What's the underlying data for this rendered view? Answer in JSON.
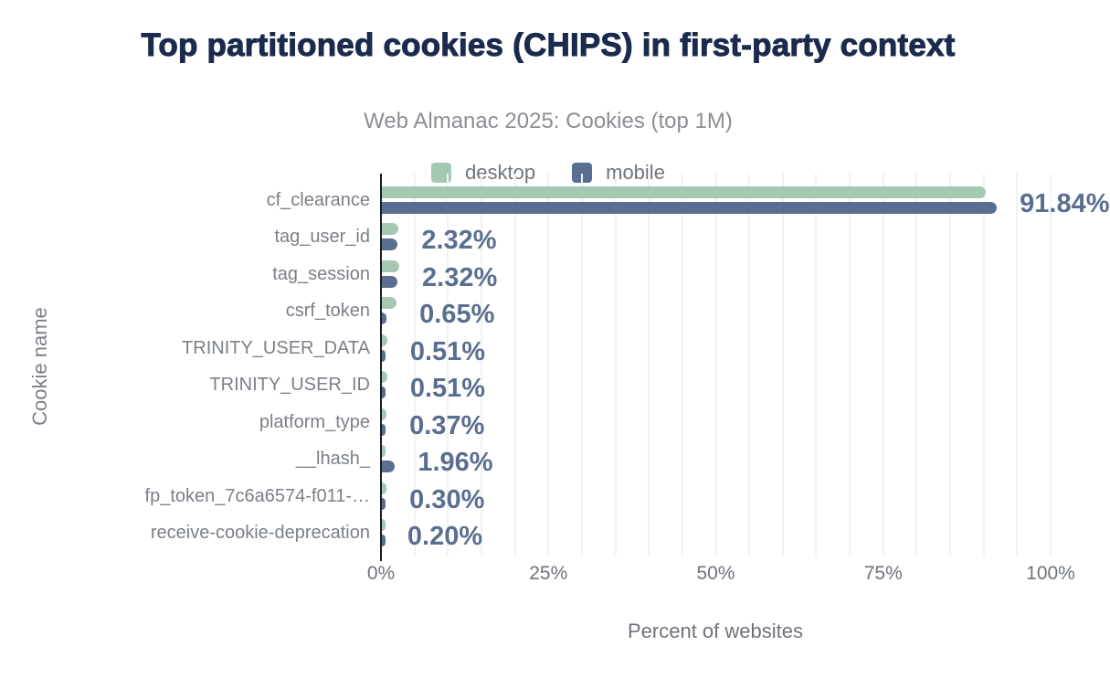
{
  "title": "Top partitioned cookies (CHIPS) in first-party context",
  "subtitle": "Web Almanac 2025: Cookies (top 1M)",
  "x_axis_title": "Percent of websites",
  "y_axis_title": "Cookie name",
  "colors": {
    "title": "#1b2b4d",
    "desktop": "#a5c8b3",
    "mobile": "#5a6e91",
    "value_label": "#5a6e91",
    "gridline": "#f2f2f2",
    "axis_line": "#1d1d1d"
  },
  "legend": [
    {
      "label": "desktop",
      "color": "#a5c8b3"
    },
    {
      "label": "mobile",
      "color": "#5a6e91"
    }
  ],
  "chart_data": {
    "type": "bar",
    "orientation": "horizontal",
    "title": "Top partitioned cookies (CHIPS) in first-party context",
    "subtitle": "Web Almanac 2025: Cookies (top 1M)",
    "xlabel": "Percent of websites",
    "ylabel": "Cookie name",
    "xlim": [
      0,
      100
    ],
    "x_tick_labels": [
      "0%",
      "25%",
      "50%",
      "75%",
      "100%"
    ],
    "grid_step_percent": 5,
    "grid": true,
    "legend_position": "top",
    "categories": [
      "cf_clearance",
      "tag_user_id",
      "tag_session",
      "csrf_token",
      "TRINITY_USER_DATA",
      "TRINITY_USER_ID",
      "platform_type",
      "__lhash_",
      "fp_token_7c6a6574-f011-…",
      "receive-cookie-deprecation"
    ],
    "series": [
      {
        "name": "desktop",
        "color": "#a5c8b3",
        "values": [
          90.2,
          2.5,
          2.6,
          2.2,
          0.8,
          0.8,
          0.7,
          0.5,
          0.7,
          0.4
        ]
      },
      {
        "name": "mobile",
        "color": "#5a6e91",
        "values": [
          91.84,
          2.32,
          2.32,
          0.65,
          0.51,
          0.51,
          0.37,
          1.96,
          0.3,
          0.2
        ]
      }
    ],
    "labeled_series": "mobile",
    "value_labels": [
      "91.84%",
      "2.32%",
      "2.32%",
      "0.65%",
      "0.51%",
      "0.51%",
      "0.37%",
      "1.96%",
      "0.30%",
      "0.20%"
    ]
  }
}
